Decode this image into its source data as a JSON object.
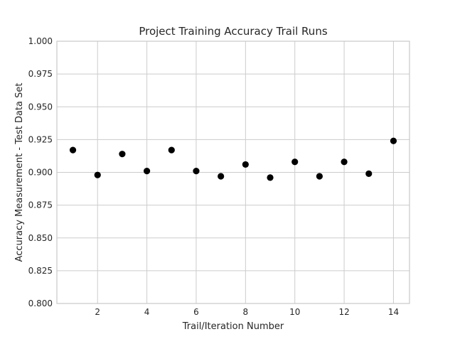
{
  "chart_data": {
    "type": "scatter",
    "title": "Project Training Accuracy Trail Runs",
    "xlabel": "Trail/Iteration Number",
    "ylabel": "Accuracy Measurement - Test Data Set",
    "xlim": [
      0.35,
      14.65
    ],
    "ylim": [
      0.8,
      1.0
    ],
    "xticks": [
      2,
      4,
      6,
      8,
      10,
      12,
      14
    ],
    "yticks": [
      0.8,
      0.825,
      0.85,
      0.875,
      0.9,
      0.925,
      0.95,
      0.975,
      1.0
    ],
    "xtick_labels": [
      "2",
      "4",
      "6",
      "8",
      "10",
      "12",
      "14"
    ],
    "ytick_labels": [
      "0.800",
      "0.825",
      "0.850",
      "0.875",
      "0.900",
      "0.925",
      "0.950",
      "0.975",
      "1.000"
    ],
    "grid": true,
    "marker_color": "#000000",
    "x": [
      1,
      2,
      3,
      4,
      5,
      6,
      7,
      8,
      9,
      10,
      11,
      12,
      13,
      14
    ],
    "y": [
      0.917,
      0.898,
      0.914,
      0.901,
      0.917,
      0.901,
      0.897,
      0.906,
      0.896,
      0.908,
      0.897,
      0.908,
      0.899,
      0.924
    ]
  }
}
